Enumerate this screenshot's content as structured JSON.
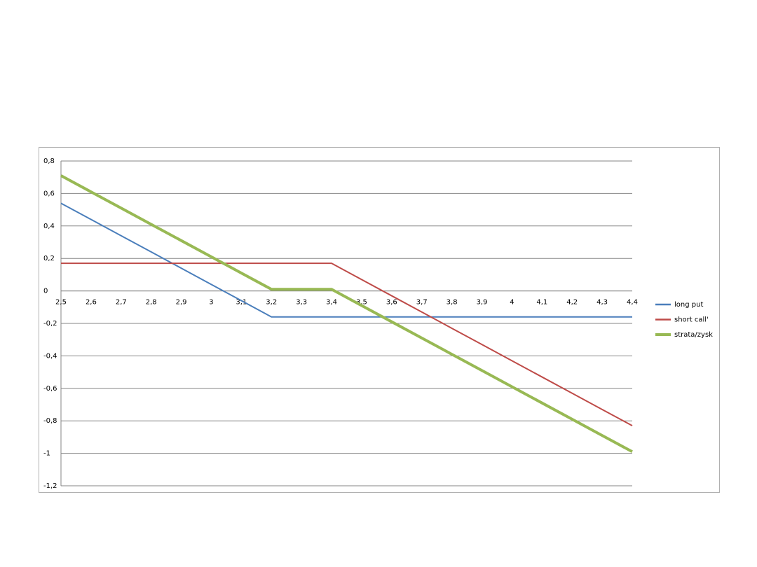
{
  "chart_data": {
    "type": "line",
    "categories": [
      "2,5",
      "2,6",
      "2,7",
      "2,8",
      "2,9",
      "3",
      "3,1",
      "3,2",
      "3,3",
      "3,4",
      "3,5",
      "3,6",
      "3,7",
      "3,8",
      "3,9",
      "4",
      "4,1",
      "4,2",
      "4,3",
      "4,4"
    ],
    "series": [
      {
        "name": "long put",
        "color": "#4a7ebb",
        "values": [
          0.54,
          0.44,
          0.34,
          0.24,
          0.14,
          0.04,
          -0.06,
          -0.16,
          -0.16,
          -0.16,
          -0.16,
          -0.16,
          -0.16,
          -0.16,
          -0.16,
          -0.16,
          -0.16,
          -0.16,
          -0.16,
          -0.16
        ]
      },
      {
        "name": "short call'",
        "color": "#be4b48",
        "values": [
          0.17,
          0.17,
          0.17,
          0.17,
          0.17,
          0.17,
          0.17,
          0.17,
          0.17,
          0.17,
          0.07,
          -0.03,
          -0.13,
          -0.23,
          -0.33,
          -0.43,
          -0.53,
          -0.63,
          -0.73,
          -0.83
        ]
      },
      {
        "name": "strata/zysk",
        "color": "#98b954",
        "values": [
          0.71,
          0.61,
          0.51,
          0.41,
          0.31,
          0.21,
          0.11,
          0.01,
          0.01,
          0.01,
          -0.09,
          -0.19,
          -0.29,
          -0.39,
          -0.49,
          -0.59,
          -0.69,
          -0.79,
          -0.89,
          -0.99
        ]
      }
    ],
    "ylim": [
      -1.2,
      0.8
    ],
    "yticks": [
      {
        "value": -1.2,
        "label": "-1,2"
      },
      -1,
      {
        "value": -0.8,
        "label": "-0,8"
      },
      {
        "value": -0.6,
        "label": "-0,6"
      },
      {
        "value": -0.4,
        "label": "-0,4"
      },
      {
        "value": -0.2,
        "label": "-0,2"
      },
      0,
      {
        "value": 0.2,
        "label": "0,2"
      },
      {
        "value": 0.4,
        "label": "0,4"
      },
      {
        "value": 0.6,
        "label": "0,6"
      },
      {
        "value": 0.8,
        "label": "0,8"
      }
    ],
    "grid": true,
    "legend": "right"
  }
}
